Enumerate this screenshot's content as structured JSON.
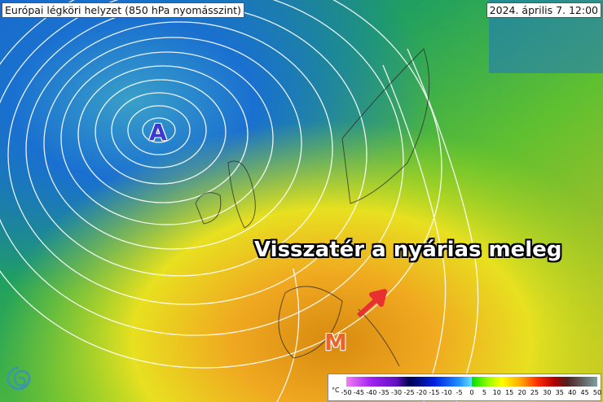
{
  "title": "Európai légköri helyzet (850 hPa nyomásszint)",
  "datetime": "2024. április 7. 12:00",
  "headline": "Visszatér a nyárias meleg",
  "high_pressure_label": "A",
  "low_pressure_label": "M",
  "legend": {
    "unit": "°C",
    "ticks": [
      "-50",
      "-45",
      "-40",
      "-35",
      "-30",
      "-25",
      "-20",
      "-15",
      "-10",
      "-5",
      "0",
      "5",
      "10",
      "15",
      "20",
      "25",
      "30",
      "35",
      "40",
      "45",
      "50"
    ]
  },
  "colors": {
    "cold": "#1a6fd0",
    "mild": "#2fae3a",
    "warm": "#e8a020",
    "arrow": "#e83030"
  },
  "icons": {
    "arrow": "arrow-up-right-icon",
    "logo": "swirl-logo-icon"
  }
}
